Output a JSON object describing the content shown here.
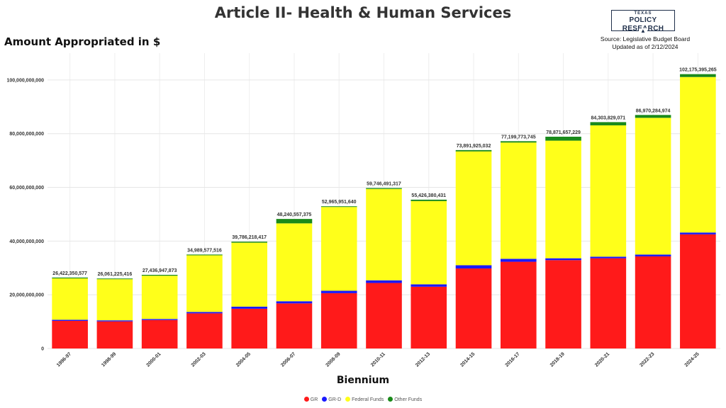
{
  "page": {
    "title": "Article II- Health & Human Services",
    "source_line": "Source: Legislative Budget Board",
    "updated_line": "Updated as of 2/12/2024",
    "logo_top": "TEXAS",
    "logo_main": "POLICY RESEARCH"
  },
  "chart_data": {
    "type": "bar",
    "stacked": true,
    "title": "Article II- Health & Human Services",
    "ylabel": "Amount Appropriated in $",
    "xlabel": "Biennium",
    "ylim": [
      0,
      110000000000
    ],
    "yticks": [
      0,
      20000000000,
      40000000000,
      60000000000,
      80000000000,
      100000000000
    ],
    "ytick_labels": [
      "0",
      "20,000,000,000",
      "40,000,000,000",
      "60,000,000,000",
      "80,000,000,000",
      "100,000,000,000"
    ],
    "grid": true,
    "legend_position": "bottom",
    "categories": [
      "1996-97",
      "1998-99",
      "2000-01",
      "2002-03",
      "2004-05",
      "2006-07",
      "2008-09",
      "2010-11",
      "2012-13",
      "2014-15",
      "2016-17",
      "2018-19",
      "2020-21",
      "2022-23",
      "2024-25"
    ],
    "totals": [
      26422350577,
      26061225416,
      27436947873,
      34989577516,
      39786218417,
      48240557375,
      52965951640,
      59746491317,
      55426380431,
      73891925032,
      77199773745,
      78871657229,
      84303829071,
      86970284974,
      102175395265
    ],
    "total_labels": [
      "26,422,350,577",
      "26,061,225,416",
      "27,436,947,873",
      "34,989,577,516",
      "39,786,218,417",
      "48,240,557,375",
      "52,965,951,640",
      "59,746,491,317",
      "55,426,380,431",
      "73,891,925,032",
      "77,199,773,745",
      "78,871,657,229",
      "84,303,829,071",
      "86,970,284,974",
      "102,175,395,265"
    ],
    "series": [
      {
        "name": "GR",
        "color": "#ff1a1a",
        "values": [
          10300000000,
          10100000000,
          10600000000,
          13100000000,
          14800000000,
          16800000000,
          20600000000,
          24400000000,
          23000000000,
          29800000000,
          32300000000,
          32900000000,
          33600000000,
          34300000000,
          42500000000
        ]
      },
      {
        "name": "GR-D",
        "color": "#1a1aff",
        "values": [
          400000000,
          400000000,
          400000000,
          500000000,
          800000000,
          800000000,
          900000000,
          1000000000,
          900000000,
          1200000000,
          1100000000,
          700000000,
          600000000,
          700000000,
          700000000
        ]
      },
      {
        "name": "Federal Funds",
        "color": "#ffff1a",
        "values": [
          15400000000,
          15300000000,
          16100000000,
          21100000000,
          23800000000,
          29000000000,
          31200000000,
          34000000000,
          31000000000,
          42400000000,
          43300000000,
          43800000000,
          48900000000,
          50900000000,
          57900000000
        ]
      },
      {
        "name": "Other Funds",
        "color": "#1a8a1a",
        "values": [
          322350577,
          261225416,
          336947873,
          289577516,
          386218417,
          1640557375,
          265951640,
          346491317,
          526380431,
          491925032,
          499773745,
          1471657229,
          1203829071,
          1070284974,
          1075395265
        ]
      }
    ]
  }
}
